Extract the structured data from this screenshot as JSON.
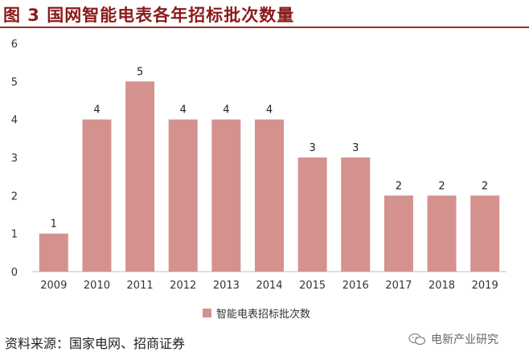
{
  "title": "图 3  国网智能电表各年招标批次数量",
  "legend": {
    "label": "智能电表招标批次数"
  },
  "source": "资料来源：国家电网、招商证券",
  "watermark": {
    "text": "电新产业研究",
    "icon": "wechat-icon"
  },
  "colors": {
    "bar": "#D4928F",
    "title": "#8B1A1A"
  },
  "chart_data": {
    "type": "bar",
    "categories": [
      "2009",
      "2010",
      "2011",
      "2012",
      "2013",
      "2014",
      "2015",
      "2016",
      "2017",
      "2018",
      "2019"
    ],
    "series": [
      {
        "name": "智能电表招标批次数",
        "values": [
          1,
          4,
          5,
          4,
          4,
          4,
          3,
          3,
          2,
          2,
          2
        ]
      }
    ],
    "title": "图 3  国网智能电表各年招标批次数量",
    "xlabel": "",
    "ylabel": "",
    "ylim": [
      0,
      6
    ],
    "yticks": [
      0,
      1,
      2,
      3,
      4,
      5,
      6
    ],
    "grid": false,
    "data_labels": true,
    "legend_position": "bottom"
  }
}
